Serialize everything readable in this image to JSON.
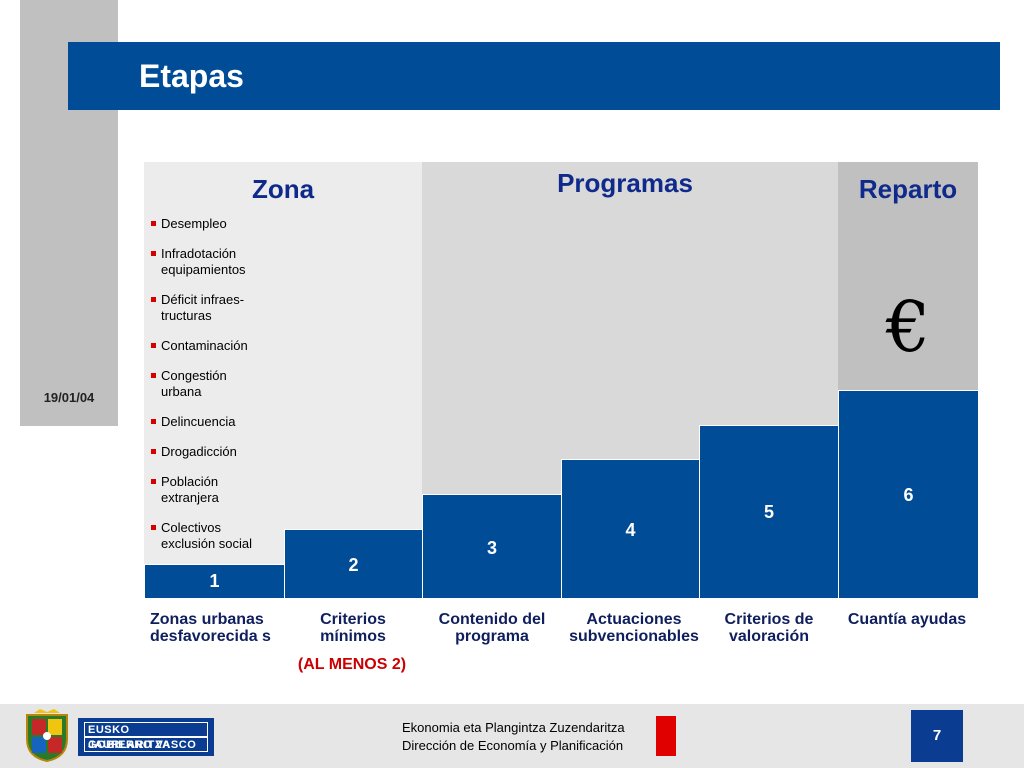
{
  "slide": {
    "title": "Etapas",
    "date": "19/01/04",
    "page_number": "7"
  },
  "columns": {
    "zona": {
      "title": "Zona"
    },
    "programas": {
      "title": "Programas"
    },
    "reparto": {
      "title": "Reparto",
      "symbol": "€"
    }
  },
  "zona_items": [
    "Desempleo",
    "Infradotación equipamientos",
    "Déficit infraes-tructuras",
    "Contaminación",
    "Congestión urbana",
    "Delincuencia",
    "Drogadicción",
    "Población extranjera",
    "Colectivos exclusión social"
  ],
  "stages": [
    {
      "number": "1",
      "label": "Zonas urbanas desfavorecida s"
    },
    {
      "number": "2",
      "label": "Criterios mínimos"
    },
    {
      "number": "3",
      "label": "Contenido del programa"
    },
    {
      "number": "4",
      "label": "Actuaciones subvencionables"
    },
    {
      "number": "5",
      "label": "Criterios de valoración"
    },
    {
      "number": "6",
      "label": "Cuantía ayudas"
    }
  ],
  "note": "(AL  MENOS 2)",
  "footer": {
    "logo_line1": "EUSKO JAURLARITZA",
    "logo_line2": "GOBIERNO VASCO",
    "dept_eu": "Ekonomia eta Plangintza Zuzendaritza",
    "dept_es": "Dirección de Economía y Planificación"
  },
  "colors": {
    "title_bar": "#004c97",
    "bars": "#004c97",
    "heading_text": "#0f2a8a",
    "bullet": "#d40000",
    "note": "#cc0000"
  }
}
